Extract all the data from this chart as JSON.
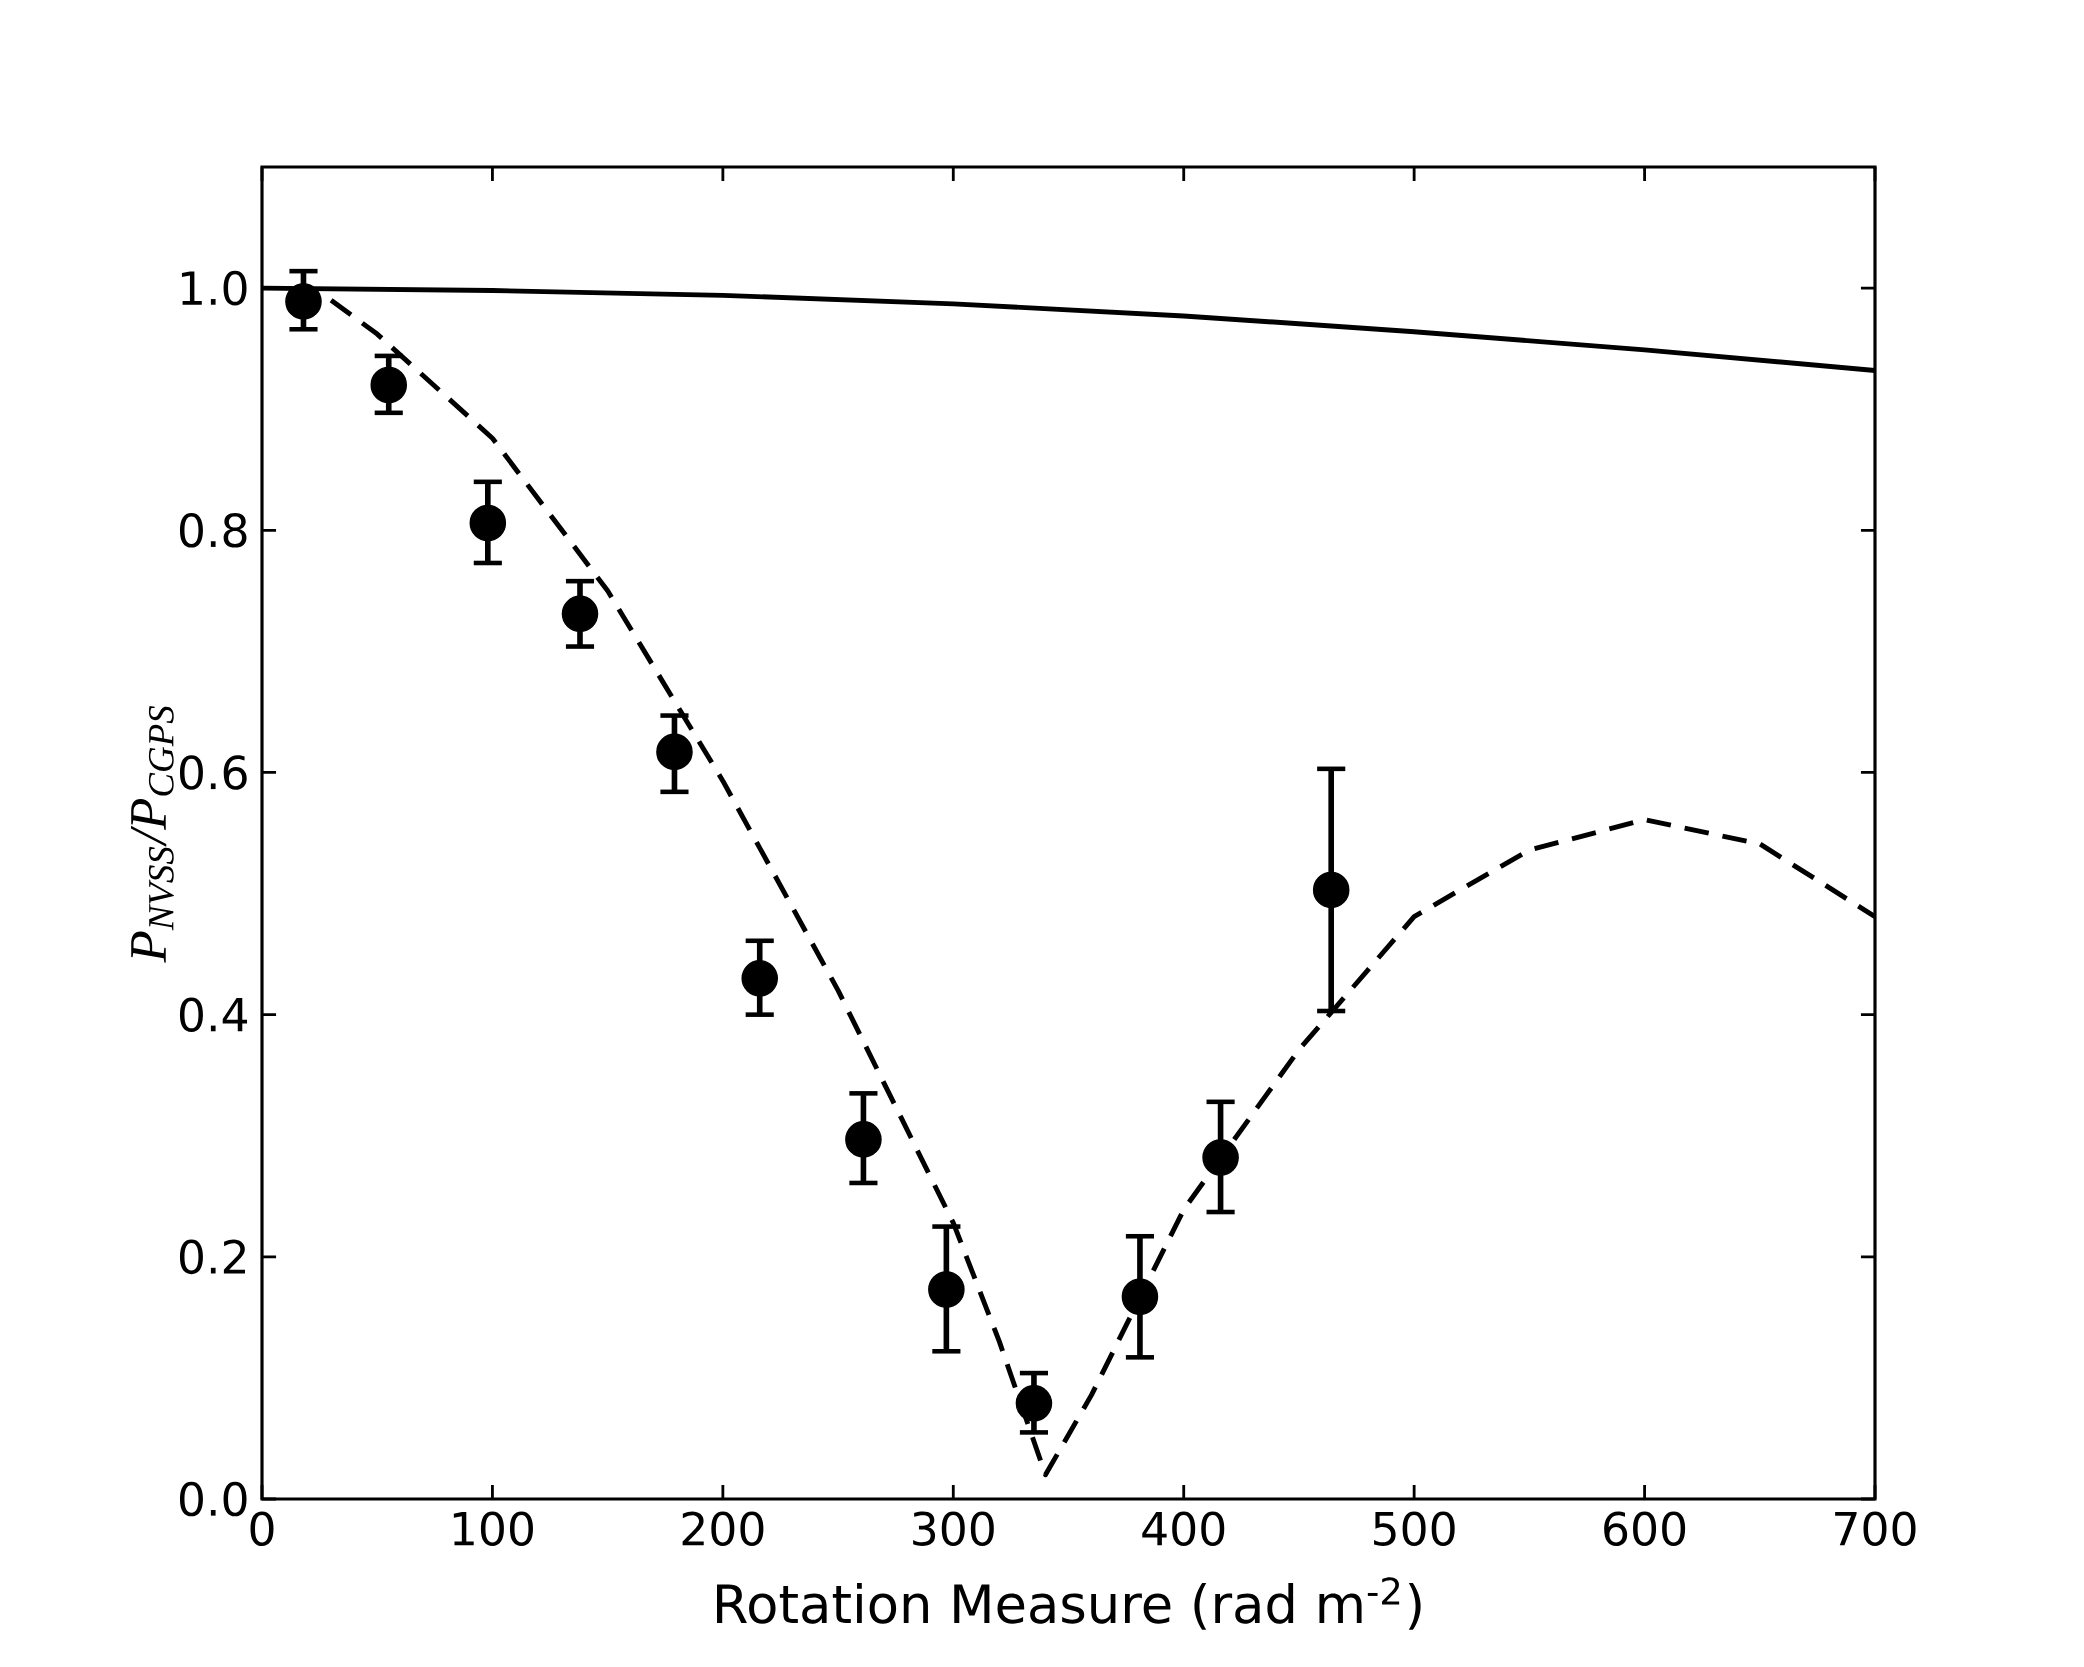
{
  "chart_data": {
    "type": "scatter",
    "xlabel": "Rotation Measure (rad m$^{-2}$)",
    "ylabel": "P$_{NVSS}$/P$_{CGPS}$",
    "xlim": [
      0,
      700
    ],
    "ylim": [
      0,
      1.1
    ],
    "xticks": [
      0,
      100,
      200,
      300,
      400,
      500,
      600,
      700
    ],
    "yticks": [
      {
        "value": 0,
        "label": "0.0"
      },
      0.2,
      0.4,
      0.6,
      0.8,
      {
        "value": 1,
        "label": "1.0"
      }
    ],
    "grid": false,
    "series": [
      {
        "color": "#000000",
        "marker": "circle",
        "x": [
          18,
          55,
          98,
          138,
          179,
          216,
          261,
          297,
          335,
          381,
          416,
          464
        ],
        "values": [
          0.989,
          0.92,
          0.806,
          0.731,
          0.617,
          0.43,
          0.297,
          0.173,
          0.079,
          0.167,
          0.282,
          0.503
        ],
        "errors": [
          [
            0.966,
            1.014
          ],
          [
            0.897,
            0.944
          ],
          [
            0.773,
            0.84
          ],
          [
            0.704,
            0.758
          ],
          [
            0.584,
            0.647
          ],
          [
            0.4,
            0.461
          ],
          [
            0.261,
            0.335
          ],
          [
            0.122,
            0.225
          ],
          [
            0.055,
            0.104
          ],
          [
            0.117,
            0.217
          ],
          [
            0.237,
            0.328
          ],
          [
            0.403,
            0.603
          ]
        ]
      },
      {
        "type": "line",
        "color": "#000000",
        "marker": "none",
        "line_style": "solid",
        "x": [
          0,
          100,
          200,
          300,
          400,
          500,
          600,
          700
        ],
        "values": [
          1.0,
          0.998,
          0.994,
          0.987,
          0.977,
          0.964,
          0.949,
          0.932
        ]
      },
      {
        "type": "line",
        "color": "#000000",
        "marker": "none",
        "line_style": "dashed",
        "x": [
          30,
          50,
          100,
          150,
          200,
          250,
          300,
          320,
          340,
          360,
          400,
          450,
          500,
          550,
          600,
          650,
          700
        ],
        "values": [
          0.99,
          0.962,
          0.876,
          0.75,
          0.593,
          0.42,
          0.228,
          0.13,
          0.02,
          0.086,
          0.239,
          0.371,
          0.481,
          0.536,
          0.561,
          0.541,
          0.481
        ]
      }
    ]
  }
}
